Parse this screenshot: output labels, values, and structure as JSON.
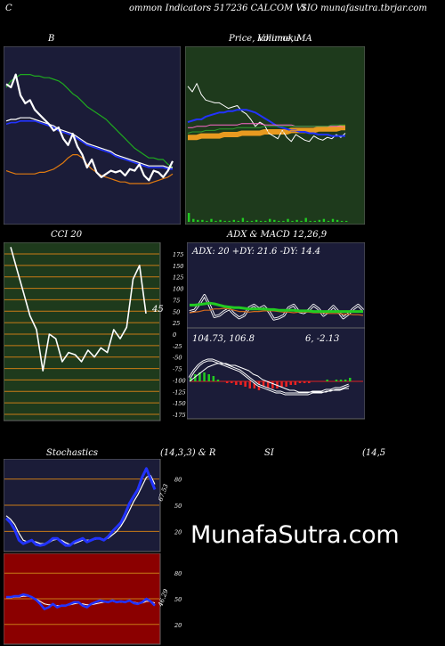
{
  "header": {
    "left": "C",
    "middle": "ommon  Indicators 517236  CALCOM VI",
    "right": "SIO munafasutra.tbrjar.com"
  },
  "watermark": "MunafaSutra.com",
  "colors": {
    "navy": "#1b1c38",
    "green_panel": "#1e3a1c",
    "red_panel": "#8b0000",
    "grid_orange": "#c87a16",
    "grid_green": "#2e8b2e"
  },
  "chart_data": [
    {
      "id": "bollinger",
      "type": "line",
      "title": "B",
      "x": [
        0,
        1,
        2,
        3,
        4,
        5,
        6,
        7,
        8,
        9,
        10,
        11,
        12,
        13,
        14,
        15,
        16,
        17,
        18,
        19,
        20,
        21,
        22,
        23,
        24,
        25,
        26,
        27,
        28,
        29,
        30,
        31,
        32,
        33,
        34,
        35
      ],
      "ylim": [
        0,
        100
      ],
      "series": [
        {
          "role": "upper",
          "color": "#1faa1f",
          "values": [
            80,
            84,
            86,
            88,
            88,
            88,
            87,
            87,
            86,
            86,
            85,
            84,
            82,
            79,
            76,
            74,
            71,
            68,
            66,
            64,
            62,
            60,
            57,
            54,
            51,
            48,
            45,
            42,
            40,
            38,
            36,
            36,
            35,
            35,
            32,
            30
          ]
        },
        {
          "role": "middle",
          "color": "#ffffff",
          "values": [
            59,
            60,
            60,
            61,
            61,
            61,
            60,
            59,
            58,
            57,
            56,
            54,
            53,
            52,
            51,
            49,
            47,
            45,
            44,
            43,
            42,
            41,
            40,
            38,
            37,
            36,
            35,
            34,
            33,
            32,
            31,
            31,
            31,
            31,
            30,
            30
          ]
        },
        {
          "role": "middle2",
          "color": "#2233ff",
          "values": [
            57,
            58,
            58,
            59,
            59,
            59,
            59,
            58,
            57,
            56,
            55,
            53,
            52,
            51,
            50,
            48,
            46,
            44,
            43,
            42,
            41,
            40,
            39,
            37,
            36,
            35,
            34,
            33,
            32,
            31,
            30,
            30,
            30,
            30,
            29,
            29
          ]
        },
        {
          "role": "lower",
          "color": "#e07a10",
          "values": [
            28,
            27,
            26,
            26,
            26,
            26,
            26,
            27,
            27,
            28,
            29,
            31,
            33,
            36,
            38,
            38,
            36,
            32,
            29,
            27,
            25,
            24,
            23,
            22,
            21,
            21,
            20,
            20,
            20,
            20,
            20,
            21,
            22,
            23,
            24,
            26
          ]
        },
        {
          "role": "price",
          "color": "#ffffff",
          "values": [
            82,
            80,
            88,
            75,
            70,
            72,
            66,
            63,
            60,
            57,
            53,
            55,
            48,
            44,
            51,
            43,
            38,
            30,
            35,
            27,
            24,
            26,
            28,
            27,
            28,
            25,
            29,
            28,
            32,
            25,
            22,
            28,
            27,
            24,
            28,
            34
          ]
        }
      ]
    },
    {
      "id": "price_ma",
      "type": "line",
      "title": "Price,  Volume,  MA",
      "overlay_title": "Ichimoku",
      "x": [
        0,
        1,
        2,
        3,
        4,
        5,
        6,
        7,
        8,
        9,
        10,
        11,
        12,
        13,
        14,
        15,
        16,
        17,
        18,
        19,
        20,
        21,
        22,
        23,
        24,
        25,
        26,
        27,
        28,
        29,
        30,
        31,
        32,
        33,
        34,
        35
      ],
      "ylim": [
        0,
        100
      ],
      "series": [
        {
          "name": "price",
          "color": "#ffffff",
          "values": [
            84,
            80,
            86,
            78,
            74,
            73,
            72,
            72,
            70,
            68,
            69,
            70,
            66,
            64,
            60,
            55,
            58,
            56,
            50,
            48,
            46,
            52,
            47,
            44,
            49,
            47,
            45,
            44,
            48,
            46,
            45,
            47,
            46,
            49,
            47,
            50
          ]
        },
        {
          "name": "ma_blue",
          "color": "#2233ff",
          "values": [
            58,
            59,
            60,
            60,
            62,
            63,
            64,
            65,
            65,
            66,
            66,
            67,
            67,
            67,
            66,
            65,
            63,
            61,
            59,
            57,
            55,
            54,
            53,
            52,
            52,
            51,
            51,
            50,
            50,
            49,
            49,
            49,
            48,
            48,
            48,
            48
          ]
        },
        {
          "name": "ma_pink",
          "color": "#ff66cc",
          "values": [
            54,
            54,
            55,
            55,
            55,
            56,
            56,
            56,
            56,
            56,
            56,
            56,
            57,
            57,
            57,
            57,
            57,
            56,
            56,
            56,
            56,
            56,
            56,
            56,
            55,
            55,
            55,
            55,
            55,
            55,
            55,
            55,
            55,
            55,
            55,
            54
          ]
        },
        {
          "name": "ma_orange",
          "color": "#e89a20",
          "values": [
            47,
            47,
            47,
            48,
            48,
            48,
            48,
            48,
            49,
            49,
            49,
            49,
            50,
            50,
            50,
            50,
            50,
            51,
            51,
            51,
            51,
            51,
            51,
            52,
            52,
            52,
            52,
            52,
            52,
            53,
            53,
            53,
            53,
            53,
            54,
            54
          ]
        },
        {
          "name": "ma_green",
          "color": "#2e9a2e",
          "values": [
            50,
            51,
            51,
            51,
            52,
            52,
            52,
            53,
            53,
            53,
            53,
            54,
            54,
            54,
            54,
            54,
            54,
            55,
            55,
            55,
            55,
            55,
            55,
            55,
            55,
            55,
            55,
            55,
            55,
            55,
            55,
            55,
            56,
            56,
            56,
            56
          ]
        }
      ],
      "volume": [
        9,
        3,
        2,
        2,
        1,
        3,
        1,
        2,
        1,
        1,
        2,
        1,
        4,
        1,
        1,
        2,
        1,
        1,
        3,
        2,
        1,
        1,
        3,
        1,
        2,
        1,
        4,
        1,
        1,
        2,
        3,
        1,
        3,
        2,
        1,
        1
      ]
    },
    {
      "id": "cci",
      "type": "line",
      "title": "CCI 20",
      "current_label": "45",
      "ylim": [
        -175,
        175
      ],
      "ticks": [
        175,
        150,
        125,
        100,
        75,
        50,
        25,
        0,
        -25,
        -50,
        -75,
        -100,
        -125,
        -150,
        -175
      ],
      "x": [
        0,
        1,
        2,
        3,
        4,
        5,
        6,
        7,
        8,
        9,
        10,
        11,
        12,
        13,
        14,
        15,
        16,
        17,
        18,
        19,
        20,
        21
      ],
      "values": [
        190,
        140,
        90,
        40,
        10,
        -80,
        0,
        -10,
        -60,
        -40,
        -45,
        -60,
        -35,
        -50,
        -30,
        -40,
        10,
        -10,
        15,
        120,
        150,
        45
      ]
    },
    {
      "id": "adx_macd",
      "type": "line",
      "title": "ADX  & MACD 12,26,9",
      "adx_label": "ADX: 20  +DY: 21.6  -DY: 14.4",
      "macd_label_left": "104.73,  106.8",
      "macd_label_right": "6,  -2.13",
      "x": [
        0,
        1,
        2,
        3,
        4,
        5,
        6,
        7,
        8,
        9,
        10,
        11,
        12,
        13,
        14,
        15,
        16,
        17,
        18,
        19,
        20,
        21,
        22,
        23,
        24,
        25,
        26,
        27,
        28,
        29,
        30,
        31,
        32,
        33,
        34,
        35
      ],
      "adx_ylim": [
        0,
        100
      ],
      "adx_series": [
        {
          "name": "ADX",
          "color": "#22cc22",
          "values": [
            30,
            30,
            31,
            32,
            33,
            32,
            30,
            28,
            27,
            26,
            26,
            25,
            24,
            24,
            24,
            24,
            23,
            23,
            22,
            22,
            22,
            22,
            21,
            21,
            21,
            20,
            20,
            20,
            20,
            20,
            20,
            20,
            20,
            20,
            20,
            20
          ]
        },
        {
          "name": "+DY",
          "color": "#ffffff",
          "values": [
            20,
            22,
            32,
            45,
            30,
            12,
            14,
            20,
            24,
            16,
            10,
            14,
            26,
            30,
            24,
            28,
            20,
            8,
            10,
            14,
            26,
            30,
            20,
            18,
            22,
            30,
            24,
            14,
            20,
            28,
            20,
            10,
            16,
            24,
            30,
            22
          ]
        },
        {
          "name": "-DY",
          "color": "#d2691e",
          "values": [
            18,
            19,
            20,
            22,
            22,
            24,
            24,
            25,
            24,
            22,
            20,
            20,
            19,
            20,
            20,
            21,
            21,
            21,
            20,
            19,
            19,
            18,
            19,
            19,
            19,
            18,
            18,
            18,
            17,
            17,
            17,
            16,
            16,
            15,
            15,
            14
          ]
        }
      ],
      "macd_ylim": [
        -20,
        20
      ],
      "macd": [
        2,
        6,
        9,
        11,
        12,
        12,
        11,
        10,
        9,
        8,
        7,
        6,
        4,
        2,
        0,
        -2,
        -3,
        -4,
        -5,
        -6,
        -6,
        -7,
        -7,
        -7,
        -7,
        -7,
        -7,
        -6,
        -6,
        -6,
        -5,
        -5,
        -4,
        -4,
        -3,
        -2
      ],
      "signal": [
        0,
        2,
        4,
        6,
        8,
        9,
        10,
        10,
        10,
        9,
        9,
        8,
        7,
        6,
        4,
        3,
        1,
        0,
        -1,
        -2,
        -3,
        -4,
        -5,
        -5,
        -6,
        -6,
        -6,
        -6,
        -6,
        -6,
        -6,
        -5,
        -5,
        -5,
        -4,
        -4
      ],
      "histogram": [
        2,
        4,
        5,
        5,
        4,
        3,
        1,
        0,
        -1,
        -1,
        -2,
        -2,
        -3,
        -4,
        -4,
        -5,
        -4,
        -4,
        -4,
        -4,
        -3,
        -3,
        -2,
        -2,
        -1,
        -1,
        -1,
        0,
        0,
        0,
        1,
        0,
        1,
        1,
        1,
        2
      ]
    },
    {
      "id": "stochastics",
      "type": "line",
      "title": "Stochastics",
      "params": "(14,3,3) & R",
      "ylim": [
        0,
        100
      ],
      "ticks": [
        80,
        50,
        20
      ],
      "current_label": "67.53",
      "x": [
        0,
        1,
        2,
        3,
        4,
        5,
        6,
        7,
        8,
        9,
        10,
        11,
        12,
        13,
        14,
        15,
        16,
        17,
        18,
        19,
        20,
        21,
        22,
        23,
        24,
        25,
        26,
        27,
        28,
        29,
        30,
        31,
        32,
        33,
        34,
        35
      ],
      "k": [
        35,
        30,
        22,
        10,
        6,
        8,
        10,
        5,
        4,
        5,
        8,
        12,
        12,
        8,
        4,
        4,
        8,
        10,
        12,
        8,
        10,
        12,
        12,
        10,
        14,
        20,
        25,
        30,
        40,
        52,
        60,
        68,
        82,
        92,
        80,
        68
      ],
      "d": [
        38,
        34,
        28,
        18,
        10,
        8,
        9,
        8,
        6,
        6,
        7,
        10,
        11,
        10,
        7,
        5,
        6,
        8,
        10,
        10,
        10,
        11,
        12,
        11,
        12,
        16,
        20,
        26,
        34,
        44,
        54,
        62,
        72,
        82,
        84,
        74
      ]
    },
    {
      "id": "rsi",
      "type": "line",
      "title": "SI",
      "params": "(14,5",
      "ylim": [
        0,
        100
      ],
      "ticks": [
        80,
        50,
        20
      ],
      "current_label": "46.29",
      "x": [
        0,
        1,
        2,
        3,
        4,
        5,
        6,
        7,
        8,
        9,
        10,
        11,
        12,
        13,
        14,
        15,
        16,
        17,
        18,
        19,
        20,
        21,
        22,
        23,
        24,
        25,
        26,
        27,
        28,
        29,
        30,
        31,
        32,
        33,
        34,
        35
      ],
      "values": [
        52,
        52,
        53,
        53,
        55,
        54,
        52,
        49,
        44,
        38,
        40,
        44,
        40,
        42,
        42,
        44,
        46,
        46,
        42,
        40,
        44,
        46,
        48,
        47,
        46,
        48,
        46,
        47,
        46,
        48,
        45,
        44,
        46,
        50,
        47,
        42
      ],
      "smooth": [
        51,
        51,
        52,
        52,
        53,
        53,
        52,
        50,
        47,
        44,
        43,
        43,
        42,
        42,
        42,
        43,
        44,
        45,
        44,
        43,
        43,
        44,
        45,
        46,
        46,
        47,
        46,
        46,
        46,
        47,
        46,
        45,
        45,
        47,
        47,
        45
      ]
    }
  ]
}
